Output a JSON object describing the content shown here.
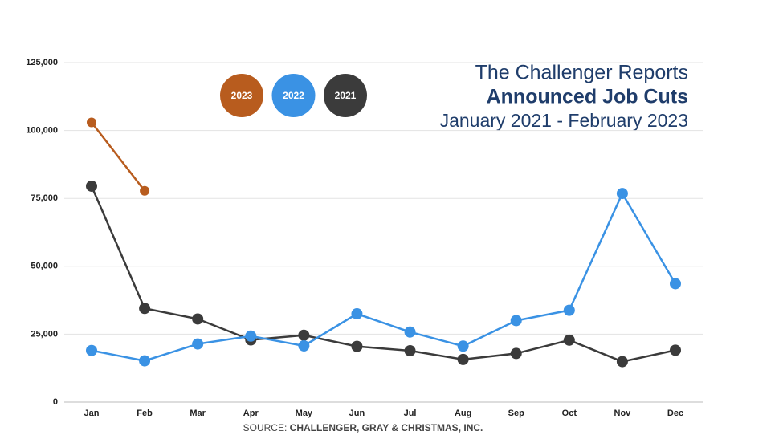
{
  "chart_data": {
    "type": "line",
    "title": "The Challenger Reports",
    "subtitle": "Announced Job Cuts",
    "date_range": "January 2021 - February 2023",
    "source_label": "SOURCE:",
    "source": "CHALLENGER, GRAY & CHRISTMAS, INC.",
    "categories": [
      "Jan",
      "Feb",
      "Mar",
      "Apr",
      "May",
      "Jun",
      "Jul",
      "Aug",
      "Sep",
      "Oct",
      "Nov",
      "Dec"
    ],
    "series": [
      {
        "name": "2023",
        "color": "#b85c1e",
        "values": [
          103000,
          77800,
          null,
          null,
          null,
          null,
          null,
          null,
          null,
          null,
          null,
          null
        ]
      },
      {
        "name": "2022",
        "color": "#3a92e4",
        "values": [
          19000,
          15200,
          21400,
          24300,
          20700,
          32500,
          25800,
          20600,
          30000,
          33800,
          76800,
          43600
        ]
      },
      {
        "name": "2021",
        "color": "#3b3b3b",
        "values": [
          79500,
          34500,
          30600,
          22900,
          24600,
          20500,
          18900,
          15700,
          17900,
          22800,
          14900,
          19100
        ]
      }
    ],
    "ylim": [
      0,
      125000
    ],
    "yticks": [
      0,
      {
        "value": 25000,
        "label": "25,000"
      },
      {
        "value": 50000,
        "label": "50,000"
      },
      {
        "value": 75000,
        "label": "75,000"
      },
      {
        "value": 100000,
        "label": "100,000"
      },
      {
        "value": 125000,
        "label": "125,000"
      }
    ],
    "grid": true
  }
}
